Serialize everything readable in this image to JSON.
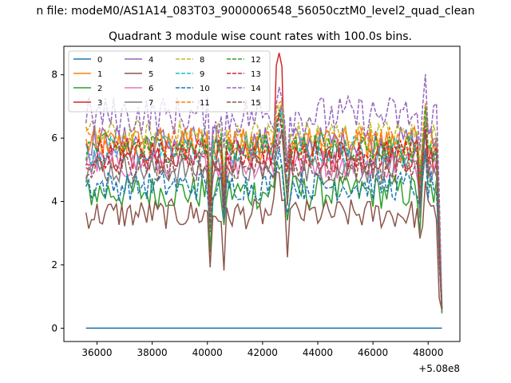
{
  "suptitle": "n file: modeM0/AS1A14_083T03_9000006548_56050cztM0_level2_quad_clean",
  "chart_data": {
    "type": "line",
    "title": "Quadrant 3 module wise count rates with 100.0s bins.",
    "xlabel": "",
    "ylabel": "",
    "x_offset_label": "+5.08e8",
    "x_ticks": [
      36000,
      38000,
      40000,
      42000,
      44000,
      46000,
      48000
    ],
    "y_ticks": [
      0,
      2,
      4,
      6,
      8
    ],
    "xlim": [
      34800,
      49150
    ],
    "ylim": [
      -0.42,
      8.9
    ],
    "x_start": 35600,
    "x_end": 48500,
    "bin": 100,
    "grid": false,
    "legend_position": "top-left",
    "series": [
      {
        "name": "0",
        "color": "#1f77b4",
        "dash": "solid",
        "base": 0.0,
        "amp": 0.0
      },
      {
        "name": "1",
        "color": "#ff7f0e",
        "dash": "solid",
        "base": 5.8,
        "amp": 0.35
      },
      {
        "name": "2",
        "color": "#2ca02c",
        "dash": "solid",
        "base": 4.3,
        "amp": 0.35
      },
      {
        "name": "3",
        "color": "#d62728",
        "dash": "solid",
        "base": 5.4,
        "amp": 0.3
      },
      {
        "name": "4",
        "color": "#9467bd",
        "dash": "solid",
        "base": 5.9,
        "amp": 0.3
      },
      {
        "name": "5",
        "color": "#8c564b",
        "dash": "solid",
        "base": 3.6,
        "amp": 0.3
      },
      {
        "name": "6",
        "color": "#e377c2",
        "dash": "solid",
        "base": 5.2,
        "amp": 0.3
      },
      {
        "name": "7",
        "color": "#7f7f7f",
        "dash": "solid",
        "base": 5.0,
        "amp": 0.3
      },
      {
        "name": "8",
        "color": "#bcbd22",
        "dash": "dashed",
        "base": 6.1,
        "amp": 0.3
      },
      {
        "name": "9",
        "color": "#17becf",
        "dash": "dashed",
        "base": 5.6,
        "amp": 0.3
      },
      {
        "name": "10",
        "color": "#1f77b4",
        "dash": "dashed",
        "base": 4.5,
        "amp": 0.3
      },
      {
        "name": "11",
        "color": "#ff7f0e",
        "dash": "dashed",
        "base": 5.9,
        "amp": 0.3
      },
      {
        "name": "12",
        "color": "#2ca02c",
        "dash": "dashed",
        "base": 5.7,
        "amp": 0.3
      },
      {
        "name": "13",
        "color": "#d62728",
        "dash": "dashed",
        "base": 5.5,
        "amp": 0.3
      },
      {
        "name": "14",
        "color": "#9467bd",
        "dash": "dashed",
        "base": 6.7,
        "amp": 0.4
      },
      {
        "name": "15",
        "color": "#8c564b",
        "dash": "dashed",
        "base": 5.1,
        "amp": 0.3
      }
    ]
  }
}
